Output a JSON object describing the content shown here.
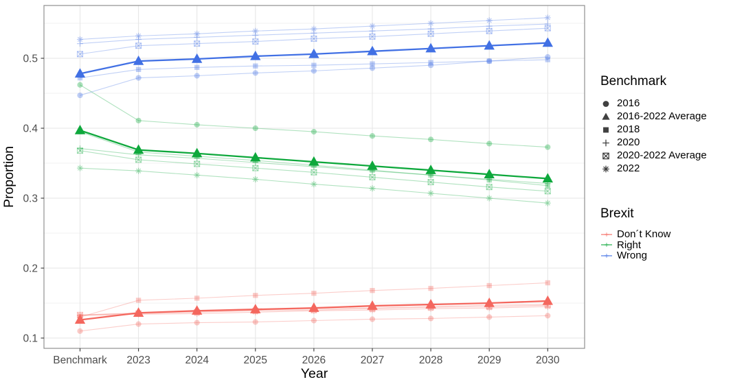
{
  "chart_data": {
    "type": "line",
    "title": "",
    "xlabel": "Year",
    "ylabel": "Proportion",
    "x_categories": [
      "Benchmark",
      "2023",
      "2024",
      "2025",
      "2026",
      "2027",
      "2028",
      "2029",
      "2030"
    ],
    "ytick_labels": [
      "0.1",
      "0.2",
      "0.3",
      "0.4",
      "0.5"
    ],
    "ytick_values": [
      0.1,
      0.2,
      0.3,
      0.4,
      0.5
    ],
    "yminor_values": [
      0.15,
      0.25,
      0.35,
      0.45,
      0.55
    ],
    "ylim": [
      0.0853,
      0.5755
    ],
    "grid": true,
    "legend_position": "right",
    "groups": [
      {
        "name": "Don´t Know",
        "color": "#F4675E",
        "series": [
          {
            "benchmark": "2016",
            "marker": "circle",
            "bold": false,
            "values": [
              0.11,
              0.12,
              0.122,
              0.123,
              0.125,
              0.127,
              0.128,
              0.13,
              0.132
            ]
          },
          {
            "benchmark": "2016-2022 Average",
            "marker": "triangle",
            "bold": true,
            "values": [
              0.126,
              0.136,
              0.139,
              0.141,
              0.143,
              0.146,
              0.148,
              0.15,
              0.153
            ]
          },
          {
            "benchmark": "2018",
            "marker": "square",
            "bold": false,
            "values": [
              0.13,
              0.154,
              0.157,
              0.161,
              0.164,
              0.168,
              0.171,
              0.175,
              0.179
            ]
          },
          {
            "benchmark": "2020",
            "marker": "plus",
            "bold": false,
            "values": [
              0.133,
              0.136,
              0.138,
              0.14,
              0.142,
              0.143,
              0.145,
              0.147,
              0.148
            ]
          },
          {
            "benchmark": "2020-2022 Average",
            "marker": "box-x",
            "bold": false,
            "values": [
              0.133,
              0.135,
              0.137,
              0.139,
              0.14,
              0.142,
              0.144,
              0.145,
              0.147
            ]
          },
          {
            "benchmark": "2022",
            "marker": "asterisk",
            "bold": false,
            "values": [
              0.132,
              0.134,
              0.135,
              0.137,
              0.139,
              0.14,
              0.142,
              0.143,
              0.145
            ]
          }
        ]
      },
      {
        "name": "Right",
        "color": "#0EA83C",
        "series": [
          {
            "benchmark": "2016",
            "marker": "circle",
            "bold": false,
            "values": [
              0.462,
              0.411,
              0.405,
              0.4,
              0.395,
              0.389,
              0.384,
              0.378,
              0.373
            ]
          },
          {
            "benchmark": "2016-2022 Average",
            "marker": "triangle",
            "bold": true,
            "values": [
              0.397,
              0.369,
              0.364,
              0.358,
              0.352,
              0.346,
              0.34,
              0.334,
              0.328
            ]
          },
          {
            "benchmark": "2018",
            "marker": "square",
            "bold": false,
            "values": [
              0.395,
              0.366,
              0.36,
              0.354,
              0.347,
              0.34,
              0.333,
              0.326,
              0.318
            ]
          },
          {
            "benchmark": "2020",
            "marker": "plus",
            "bold": false,
            "values": [
              0.371,
              0.362,
              0.357,
              0.351,
              0.345,
              0.339,
              0.333,
              0.327,
              0.321
            ]
          },
          {
            "benchmark": "2020-2022 Average",
            "marker": "box-x",
            "bold": false,
            "values": [
              0.368,
              0.355,
              0.349,
              0.343,
              0.337,
              0.33,
              0.323,
              0.316,
              0.31
            ]
          },
          {
            "benchmark": "2022",
            "marker": "asterisk",
            "bold": false,
            "values": [
              0.343,
              0.339,
              0.333,
              0.327,
              0.32,
              0.314,
              0.307,
              0.3,
              0.293
            ]
          }
        ]
      },
      {
        "name": "Wrong",
        "color": "#4170E4",
        "series": [
          {
            "benchmark": "2016",
            "marker": "circle",
            "bold": false,
            "values": [
              0.447,
              0.472,
              0.475,
              0.479,
              0.482,
              0.486,
              0.49,
              0.496,
              0.502
            ]
          },
          {
            "benchmark": "2016-2022 Average",
            "marker": "triangle",
            "bold": true,
            "values": [
              0.478,
              0.496,
              0.499,
              0.503,
              0.506,
              0.51,
              0.514,
              0.518,
              0.522
            ]
          },
          {
            "benchmark": "2018",
            "marker": "square",
            "bold": false,
            "values": [
              0.472,
              0.484,
              0.487,
              0.489,
              0.49,
              0.492,
              0.494,
              0.496,
              0.498
            ]
          },
          {
            "benchmark": "2020",
            "marker": "plus",
            "bold": false,
            "values": [
              0.521,
              0.527,
              0.53,
              0.533,
              0.536,
              0.539,
              0.542,
              0.546,
              0.549
            ]
          },
          {
            "benchmark": "2020-2022 Average",
            "marker": "box-x",
            "bold": false,
            "values": [
              0.506,
              0.518,
              0.521,
              0.524,
              0.528,
              0.531,
              0.535,
              0.539,
              0.543
            ]
          },
          {
            "benchmark": "2022",
            "marker": "asterisk",
            "bold": false,
            "values": [
              0.527,
              0.532,
              0.535,
              0.539,
              0.542,
              0.546,
              0.55,
              0.554,
              0.558
            ]
          }
        ]
      }
    ]
  },
  "legend": {
    "benchmark_title": "Benchmark",
    "benchmark_items": [
      {
        "label": "2016",
        "marker": "circle"
      },
      {
        "label": "2016-2022 Average",
        "marker": "triangle"
      },
      {
        "label": "2018",
        "marker": "square"
      },
      {
        "label": "2020",
        "marker": "plus"
      },
      {
        "label": "2020-2022 Average",
        "marker": "box-x"
      },
      {
        "label": "2022",
        "marker": "asterisk"
      }
    ],
    "brexit_title": "Brexit",
    "brexit_items": [
      {
        "label": "Don´t Know",
        "color": "#F4675E"
      },
      {
        "label": "Right",
        "color": "#0EA83C"
      },
      {
        "label": "Wrong",
        "color": "#4170E4"
      }
    ]
  },
  "style_colors": {
    "panel_border": "#8f8f8f",
    "grid_major": "#e6e6e6",
    "grid_minor": "#f2f2f2",
    "tick_label": "#4d4d4d",
    "legend_marker": "#404040"
  }
}
